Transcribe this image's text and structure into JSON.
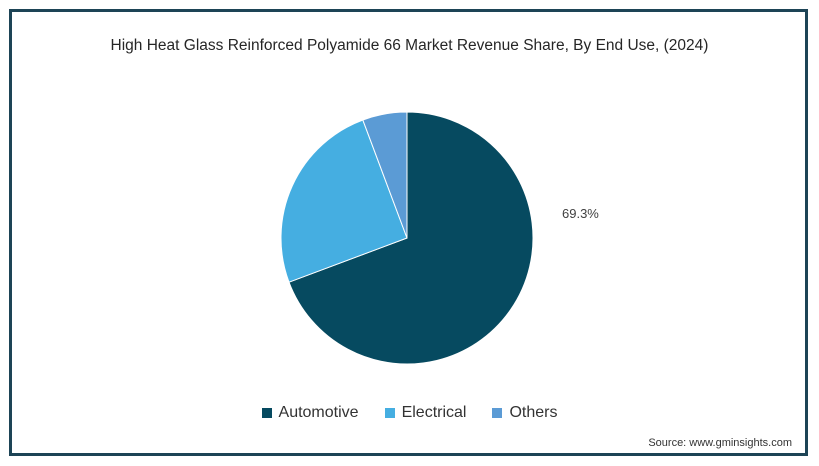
{
  "chart_data": {
    "type": "pie",
    "title": "High Heat Glass Reinforced Polyamide 66 Market Revenue Share, By End Use, (2024)",
    "slices": [
      {
        "label": "Automotive",
        "value": 69.3,
        "color": "#064a60",
        "data_label": "69.3%"
      },
      {
        "label": "Electrical",
        "value": 25.0,
        "color": "#45aee1",
        "data_label": ""
      },
      {
        "label": "Others",
        "value": 5.7,
        "color": "#5b9bd5",
        "data_label": ""
      }
    ],
    "legend_position": "bottom"
  },
  "source": "Source: www.gminsights.com"
}
